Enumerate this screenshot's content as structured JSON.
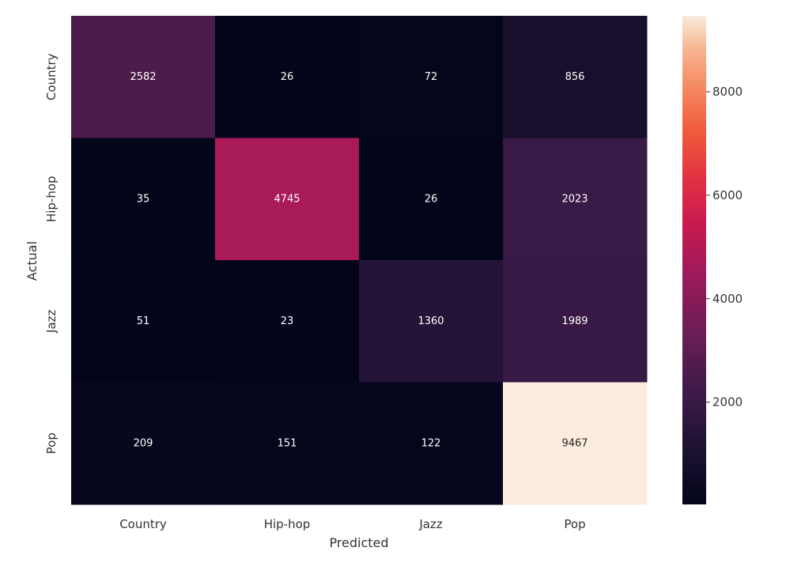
{
  "chart_data": {
    "type": "heatmap",
    "xlabel": "Predicted",
    "ylabel": "Actual",
    "x_categories": [
      "Country",
      "Hip-hop",
      "Jazz",
      "Pop"
    ],
    "y_categories": [
      "Country",
      "Hip-hop",
      "Jazz",
      "Pop"
    ],
    "values": [
      [
        2582,
        26,
        72,
        856
      ],
      [
        35,
        4745,
        26,
        2023
      ],
      [
        51,
        23,
        1360,
        1989
      ],
      [
        209,
        151,
        122,
        9467
      ]
    ],
    "colorbar": {
      "ticks": [
        "2000",
        "4000",
        "6000",
        "8000"
      ],
      "range": [
        23,
        9467
      ],
      "colormap": "rocket"
    }
  }
}
